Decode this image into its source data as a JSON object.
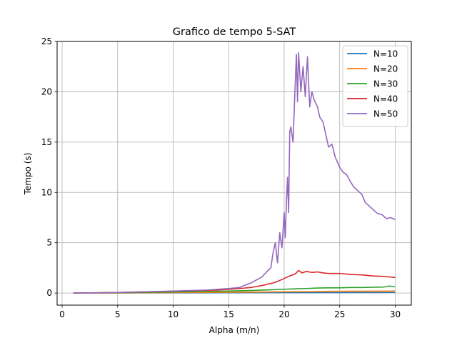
{
  "chart_data": {
    "type": "line",
    "title": "Grafico de tempo 5-SAT",
    "xlabel": "Alpha (m/n)",
    "ylabel": "Tempo (s)",
    "xlim": [
      -0.45,
      31.45
    ],
    "ylim": [
      -1.2,
      25
    ],
    "xticks": [
      0,
      5,
      10,
      15,
      20,
      25,
      30
    ],
    "yticks": [
      0,
      5,
      10,
      15,
      20,
      25
    ],
    "grid": true,
    "legend_position": "top-right",
    "series": [
      {
        "name": "N=10",
        "color": "#1f77b4",
        "points": [
          [
            1,
            0.0
          ],
          [
            5,
            0.01
          ],
          [
            10,
            0.02
          ],
          [
            15,
            0.03
          ],
          [
            20,
            0.04
          ],
          [
            25,
            0.05
          ],
          [
            30,
            0.06
          ]
        ]
      },
      {
        "name": "N=20",
        "color": "#ff7f0e",
        "points": [
          [
            1,
            0.0
          ],
          [
            5,
            0.02
          ],
          [
            10,
            0.05
          ],
          [
            15,
            0.08
          ],
          [
            18,
            0.1
          ],
          [
            20,
            0.13
          ],
          [
            22,
            0.15
          ],
          [
            25,
            0.18
          ],
          [
            28,
            0.19
          ],
          [
            30,
            0.2
          ]
        ]
      },
      {
        "name": "N=30",
        "color": "#2ca02c",
        "points": [
          [
            1,
            0.0
          ],
          [
            5,
            0.04
          ],
          [
            10,
            0.1
          ],
          [
            14,
            0.18
          ],
          [
            17,
            0.25
          ],
          [
            19,
            0.33
          ],
          [
            20,
            0.38
          ],
          [
            21,
            0.42
          ],
          [
            22,
            0.45
          ],
          [
            23,
            0.5
          ],
          [
            24,
            0.52
          ],
          [
            25,
            0.52
          ],
          [
            26,
            0.55
          ],
          [
            27,
            0.55
          ],
          [
            28,
            0.58
          ],
          [
            29,
            0.6
          ],
          [
            29.5,
            0.7
          ],
          [
            30,
            0.62
          ]
        ]
      },
      {
        "name": "N=40",
        "color": "#d62728",
        "points": [
          [
            1,
            0.0
          ],
          [
            5,
            0.06
          ],
          [
            10,
            0.18
          ],
          [
            14,
            0.3
          ],
          [
            16,
            0.45
          ],
          [
            17,
            0.55
          ],
          [
            18,
            0.75
          ],
          [
            19,
            1.0
          ],
          [
            19.5,
            1.2
          ],
          [
            20,
            1.45
          ],
          [
            20.5,
            1.7
          ],
          [
            21,
            1.9
          ],
          [
            21.3,
            2.25
          ],
          [
            21.6,
            2.0
          ],
          [
            22,
            2.15
          ],
          [
            22.5,
            2.05
          ],
          [
            23,
            2.1
          ],
          [
            23.5,
            2.0
          ],
          [
            24,
            1.95
          ],
          [
            25,
            1.95
          ],
          [
            26,
            1.85
          ],
          [
            27,
            1.8
          ],
          [
            28,
            1.7
          ],
          [
            29,
            1.65
          ],
          [
            30,
            1.55
          ]
        ]
      },
      {
        "name": "N=50",
        "color": "#9467bd",
        "points": [
          [
            1,
            0.0
          ],
          [
            5,
            0.06
          ],
          [
            10,
            0.2
          ],
          [
            13,
            0.3
          ],
          [
            15,
            0.45
          ],
          [
            16,
            0.55
          ],
          [
            16.5,
            0.8
          ],
          [
            17,
            1.0
          ],
          [
            17.5,
            1.3
          ],
          [
            18,
            1.6
          ],
          [
            18.5,
            2.2
          ],
          [
            18.8,
            2.5
          ],
          [
            19,
            4.0
          ],
          [
            19.2,
            5.0
          ],
          [
            19.4,
            3.0
          ],
          [
            19.6,
            6.0
          ],
          [
            19.8,
            4.5
          ],
          [
            20,
            8.0
          ],
          [
            20.1,
            5.5
          ],
          [
            20.2,
            9.0
          ],
          [
            20.3,
            11.5
          ],
          [
            20.4,
            8.0
          ],
          [
            20.5,
            16.0
          ],
          [
            20.6,
            16.5
          ],
          [
            20.8,
            15.0
          ],
          [
            21.0,
            21.0
          ],
          [
            21.1,
            23.7
          ],
          [
            21.2,
            19.0
          ],
          [
            21.3,
            23.9
          ],
          [
            21.5,
            20.0
          ],
          [
            21.7,
            22.5
          ],
          [
            21.9,
            19.5
          ],
          [
            22.1,
            23.5
          ],
          [
            22.3,
            18.5
          ],
          [
            22.5,
            20.0
          ],
          [
            22.7,
            19.2
          ],
          [
            23.0,
            18.5
          ],
          [
            23.2,
            17.5
          ],
          [
            23.5,
            17.0
          ],
          [
            23.8,
            15.5
          ],
          [
            24.0,
            14.5
          ],
          [
            24.3,
            14.8
          ],
          [
            24.6,
            13.5
          ],
          [
            25.0,
            12.5
          ],
          [
            25.3,
            12.0
          ],
          [
            25.6,
            11.8
          ],
          [
            26.0,
            11.0
          ],
          [
            26.3,
            10.5
          ],
          [
            26.6,
            10.2
          ],
          [
            27.0,
            9.8
          ],
          [
            27.3,
            9.0
          ],
          [
            27.6,
            8.7
          ],
          [
            28.0,
            8.3
          ],
          [
            28.4,
            7.9
          ],
          [
            28.8,
            7.8
          ],
          [
            29.2,
            7.4
          ],
          [
            29.6,
            7.5
          ],
          [
            30.0,
            7.3
          ]
        ]
      }
    ]
  }
}
